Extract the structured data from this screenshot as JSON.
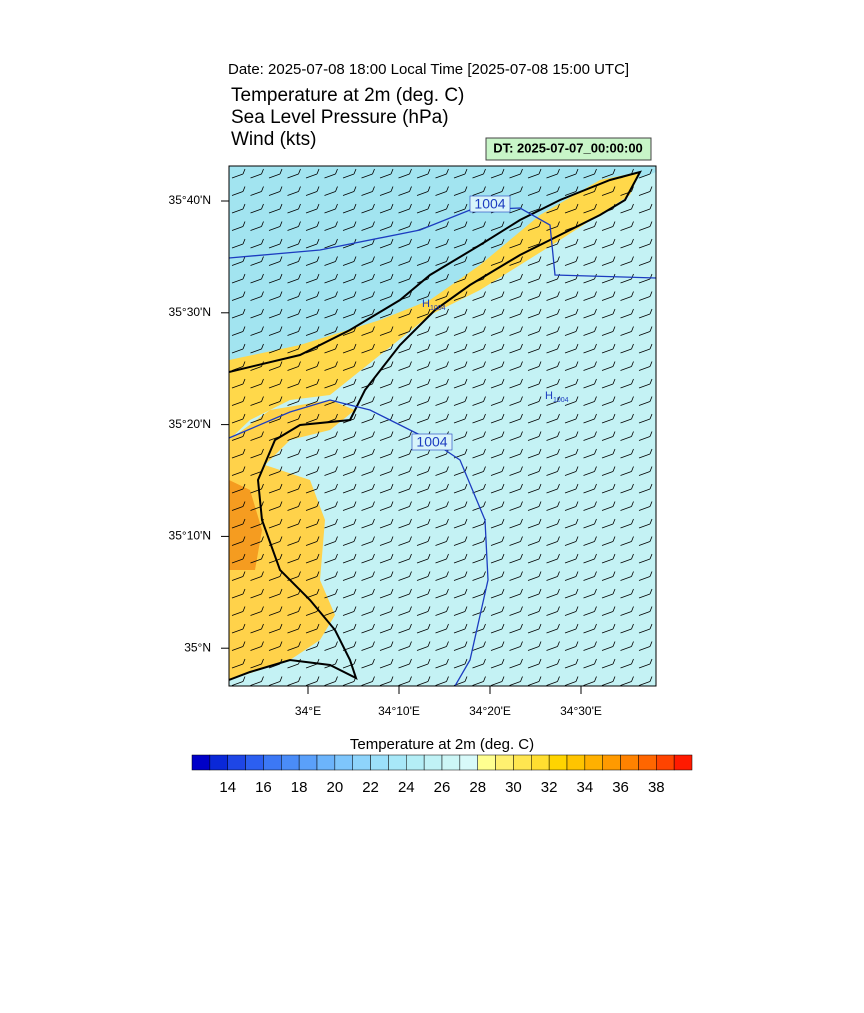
{
  "header": {
    "date": "Date: 2025-07-08  18:00 Local Time [2025-07-08  15:00 UTC]",
    "fields": [
      "Temperature at 2m   (deg. C)",
      "Sea Level Pressure   (hPa)",
      "Wind   (kts)"
    ],
    "dt": "DT: 2025-07-07_00:00:00"
  },
  "map": {
    "lat_labels": [
      "35°40'N",
      "35°30'N",
      "35°20'N",
      "35°10'N",
      "35°N"
    ],
    "lon_labels": [
      "34°E",
      "34°10'E",
      "34°20'E",
      "34°30'E"
    ],
    "contour_labels": [
      "1004",
      "1004"
    ],
    "highs": [
      {
        "symbol": "H",
        "value": "1004"
      },
      {
        "symbol": "H",
        "value": "1004"
      }
    ]
  },
  "colorbar": {
    "title": "Temperature at 2m  (deg. C)",
    "ticks": [
      14,
      16,
      18,
      20,
      22,
      24,
      26,
      28,
      30,
      32,
      34,
      36,
      38
    ],
    "colors": [
      "#0000c8",
      "#0a28d8",
      "#1e46e6",
      "#2c5ff0",
      "#3c78f5",
      "#4a8cf8",
      "#5aa0fa",
      "#6cb4fb",
      "#7ec6fc",
      "#8ed4fb",
      "#9ce0fa",
      "#a8e8f8",
      "#b4eef6",
      "#c0f2f6",
      "#ccf6f6",
      "#d8fafa",
      "#ffff90",
      "#fff070",
      "#ffe650",
      "#ffde30",
      "#ffd400",
      "#ffc400",
      "#ffb000",
      "#ff9a00",
      "#ff8200",
      "#ff6600",
      "#ff4400",
      "#ff1a00"
    ]
  }
}
